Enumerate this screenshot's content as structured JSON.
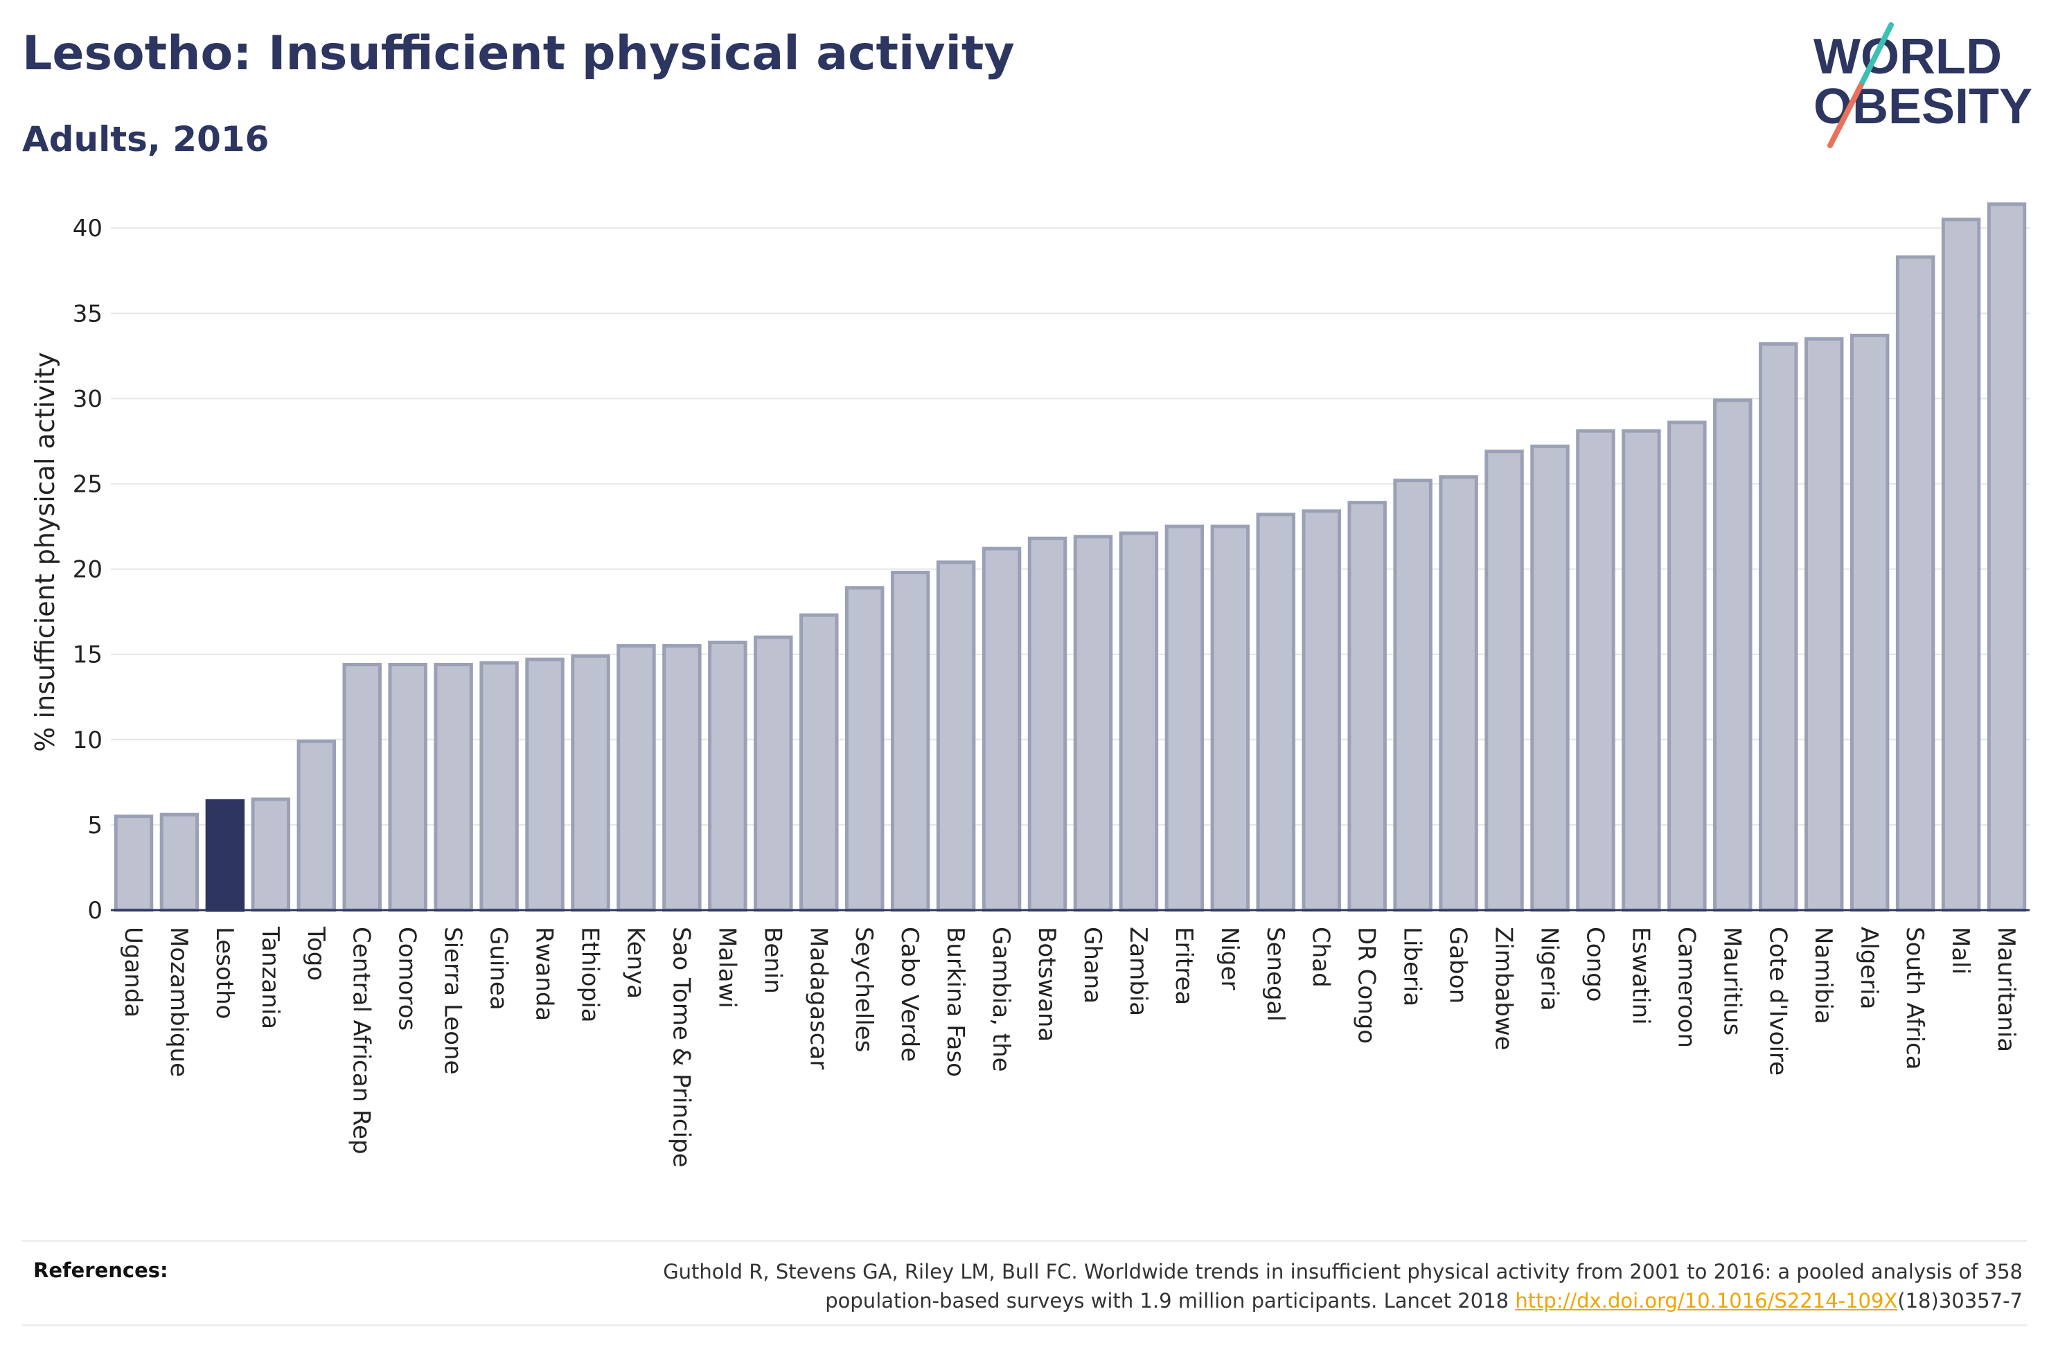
{
  "header": {
    "title": "Lesotho: Insufficient physical activity",
    "subtitle": "Adults, 2016"
  },
  "logo": {
    "line1": "WORLD",
    "line2": "OBESITY",
    "accent_teal": "#3cbfb4",
    "accent_coral": "#e8735a"
  },
  "colors": {
    "bar_fill": "#bec2d0",
    "bar_stroke": "#9ba0b6",
    "highlight": "#2d3561",
    "text": "#2d3561",
    "grid": "#e6e6e6"
  },
  "references": {
    "label": "References:",
    "text_line1": "Guthold R, Stevens GA, Riley LM, Bull FC. Worldwide trends in insufficient physical activity from 2001 to 2016: a pooled analysis of 358",
    "text_line2_prefix": "population-based surveys with 1.9 million participants. Lancet 2018 ",
    "link_text": "http://dx.doi.org/10.1016/S2214-109X",
    "text_suffix": "(18)30357-7"
  },
  "chart_data": {
    "type": "bar",
    "ylabel": "% insufficient physical activity",
    "ylim": [
      0,
      42
    ],
    "yticks": [
      0,
      5,
      10,
      15,
      20,
      25,
      30,
      35,
      40
    ],
    "grid": true,
    "highlight": "Lesotho",
    "categories": [
      "Uganda",
      "Mozambique",
      "Lesotho",
      "Tanzania",
      "Togo",
      "Central African Rep",
      "Comoros",
      "Sierra Leone",
      "Guinea",
      "Rwanda",
      "Ethiopia",
      "Kenya",
      "Sao Tome & Principe",
      "Malawi",
      "Benin",
      "Madagascar",
      "Seychelles",
      "Cabo Verde",
      "Burkina Faso",
      "Gambia, the",
      "Botswana",
      "Ghana",
      "Zambia",
      "Eritrea",
      "Niger",
      "Senegal",
      "Chad",
      "DR Congo",
      "Liberia",
      "Gabon",
      "Zimbabwe",
      "Nigeria",
      "Congo",
      "Eswatini",
      "Cameroon",
      "Mauritius",
      "Cote d'Ivoire",
      "Namibia",
      "Algeria",
      "South Africa",
      "Mali",
      "Mauritania"
    ],
    "values": [
      5.5,
      5.6,
      6.4,
      6.5,
      9.9,
      14.4,
      14.4,
      14.4,
      14.5,
      14.7,
      14.9,
      15.5,
      15.5,
      15.7,
      16.0,
      17.3,
      18.9,
      19.8,
      20.4,
      21.2,
      21.8,
      21.9,
      22.1,
      22.5,
      22.5,
      23.2,
      23.4,
      23.9,
      25.2,
      25.4,
      26.9,
      27.2,
      28.1,
      28.1,
      28.6,
      29.9,
      33.2,
      33.5,
      33.7,
      38.3,
      40.5,
      41.4
    ]
  }
}
